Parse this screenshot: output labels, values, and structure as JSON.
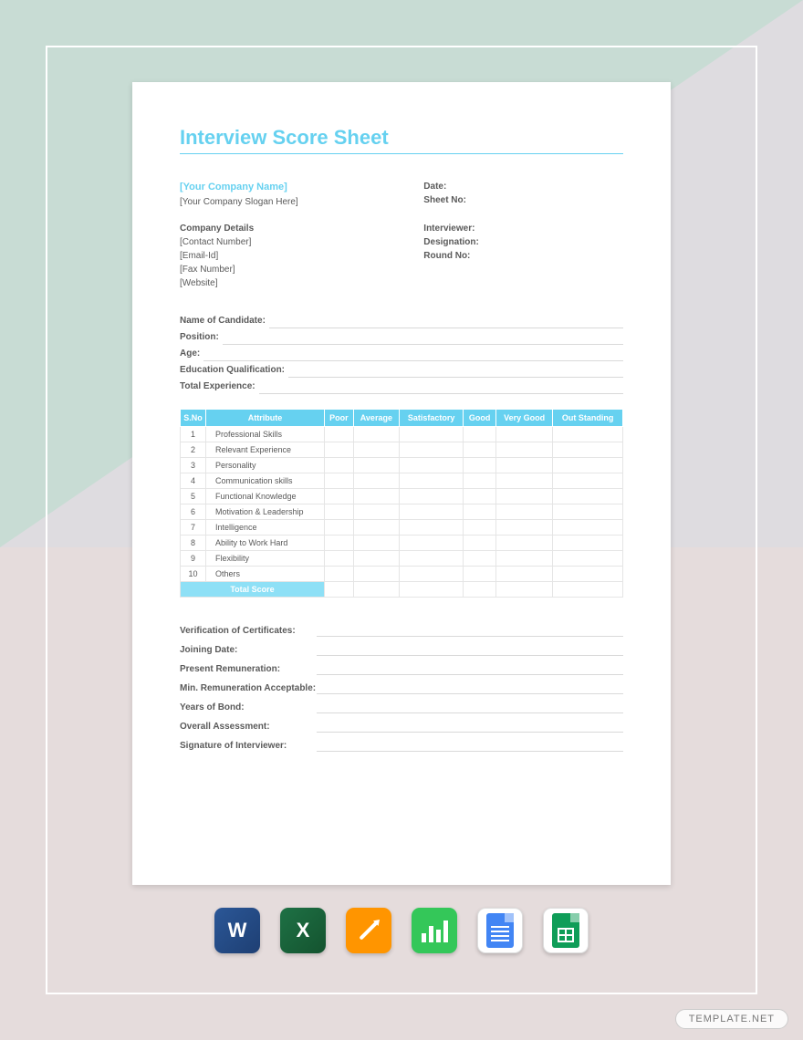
{
  "colors": {
    "accent": "#66d1f0",
    "accent_light": "#8ee0f6",
    "bg_top": "#c8dcd4",
    "bg_right": "#dedce0",
    "bg_bottom": "#e5dcdc",
    "text": "#5a5a5a",
    "cell_border": "#e5e5e5",
    "line": "#d9d9d9"
  },
  "title": "Interview Score Sheet",
  "company": {
    "name": "[Your Company Name]",
    "slogan": "[Your Company Slogan Here]",
    "details_heading": "Company Details",
    "contact": "[Contact Number]",
    "email": "[Email-Id]",
    "fax": "[Fax Number]",
    "website": "[Website]"
  },
  "meta": {
    "date": "Date:",
    "sheet_no": "Sheet No:",
    "interviewer": "Interviewer:",
    "designation": "Designation:",
    "round_no": "Round No:"
  },
  "candidate_fields": [
    "Name of Candidate:",
    "Position:",
    "Age:",
    "Education Qualification:",
    "Total Experience:"
  ],
  "table": {
    "headers": [
      "S.No",
      "Attribute",
      "Poor",
      "Average",
      "Satisfactory",
      "Good",
      "Very Good",
      "Out Standing"
    ],
    "rows": [
      {
        "sn": "1",
        "attr": "Professional Skills"
      },
      {
        "sn": "2",
        "attr": "Relevant Experience"
      },
      {
        "sn": "3",
        "attr": "Personality"
      },
      {
        "sn": "4",
        "attr": "Communication skills"
      },
      {
        "sn": "5",
        "attr": "Functional Knowledge"
      },
      {
        "sn": "6",
        "attr": "Motivation & Leadership"
      },
      {
        "sn": "7",
        "attr": "Intelligence"
      },
      {
        "sn": "8",
        "attr": "Ability to Work Hard"
      },
      {
        "sn": "9",
        "attr": "Flexibility"
      },
      {
        "sn": "10",
        "attr": "Others"
      }
    ],
    "total_label": "Total Score"
  },
  "verify_fields": [
    "Verification of Certificates:",
    "Joining Date:",
    "Present Remuneration:",
    "Min. Remuneration Acceptable:",
    "Years of Bond:",
    "Overall Assessment:",
    "Signature of Interviewer:"
  ],
  "icons": [
    {
      "name": "word-icon",
      "label": "W"
    },
    {
      "name": "excel-icon",
      "label": "X"
    },
    {
      "name": "pages-icon",
      "label": "pen"
    },
    {
      "name": "numbers-icon",
      "label": "bars"
    },
    {
      "name": "google-docs-icon",
      "label": "gdocs"
    },
    {
      "name": "google-sheets-icon",
      "label": "gsheets"
    }
  ],
  "watermark": "TEMPLATE.NET"
}
